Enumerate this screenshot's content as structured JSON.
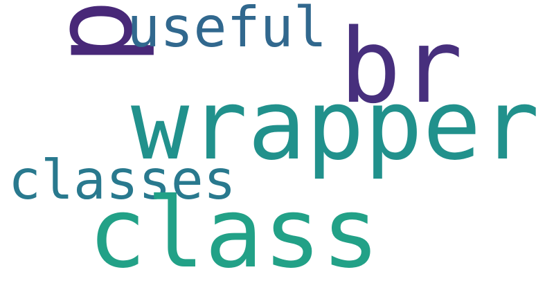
{
  "words": {
    "p": {
      "text": "p",
      "color": "#482878"
    },
    "useful": {
      "text": "useful",
      "color": "#31688e"
    },
    "br": {
      "text": "br",
      "color": "#472f7d"
    },
    "wrapper": {
      "text": "wrapper",
      "color": "#21918c"
    },
    "classes": {
      "text": "classes",
      "color": "#29798e"
    },
    "class": {
      "text": "class",
      "color": "#22a187"
    }
  }
}
